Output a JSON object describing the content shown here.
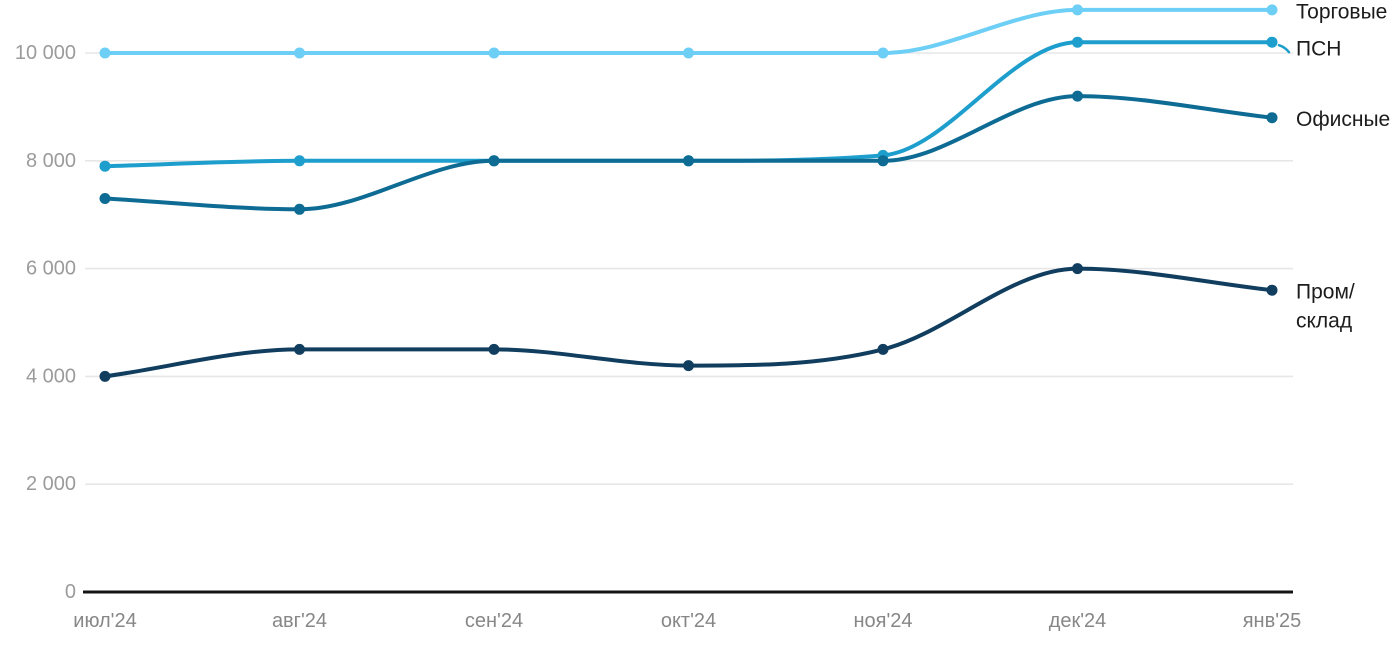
{
  "chart_data": {
    "type": "line",
    "title": "",
    "xlabel": "",
    "ylabel": "",
    "categories": [
      "июл'24",
      "авг'24",
      "сен'24",
      "окт'24",
      "ноя'24",
      "дек'24",
      "янв'25"
    ],
    "series": [
      {
        "name": "Торговые",
        "color": "#6DCFF6",
        "values": [
          10000,
          10000,
          10000,
          10000,
          10000,
          10800,
          10800
        ]
      },
      {
        "name": "ПСН",
        "color": "#1D9ECC",
        "values": [
          7900,
          8000,
          8000,
          8000,
          8100,
          10200,
          10200
        ],
        "label_connector": true
      },
      {
        "name": "Офисные",
        "color": "#0D6B94",
        "values": [
          7300,
          7100,
          8000,
          8000,
          8000,
          9200,
          8800
        ]
      },
      {
        "name": "Пром/склад",
        "color": "#113E5F",
        "values": [
          4000,
          4500,
          4500,
          4200,
          4500,
          6000,
          5600
        ],
        "label_lines": [
          "Пром/",
          "склад"
        ]
      }
    ],
    "yticks": [
      {
        "value": 0,
        "label": "0"
      },
      {
        "value": 2000,
        "label": "2 000"
      },
      {
        "value": 4000,
        "label": "4 000"
      },
      {
        "value": 6000,
        "label": "6 000"
      },
      {
        "value": 8000,
        "label": "8 000"
      },
      {
        "value": 10000,
        "label": "10 000"
      }
    ],
    "ylim": [
      0,
      11000
    ],
    "grid": true,
    "legend_position": "right-direct-labels",
    "colors": {
      "grid": "#E7E7E7",
      "axis": "#141414",
      "tick_label": "#9B9B9B",
      "x_label": "#878787",
      "series_label": "#1C1C1C",
      "background": "#FFFFFF"
    }
  }
}
